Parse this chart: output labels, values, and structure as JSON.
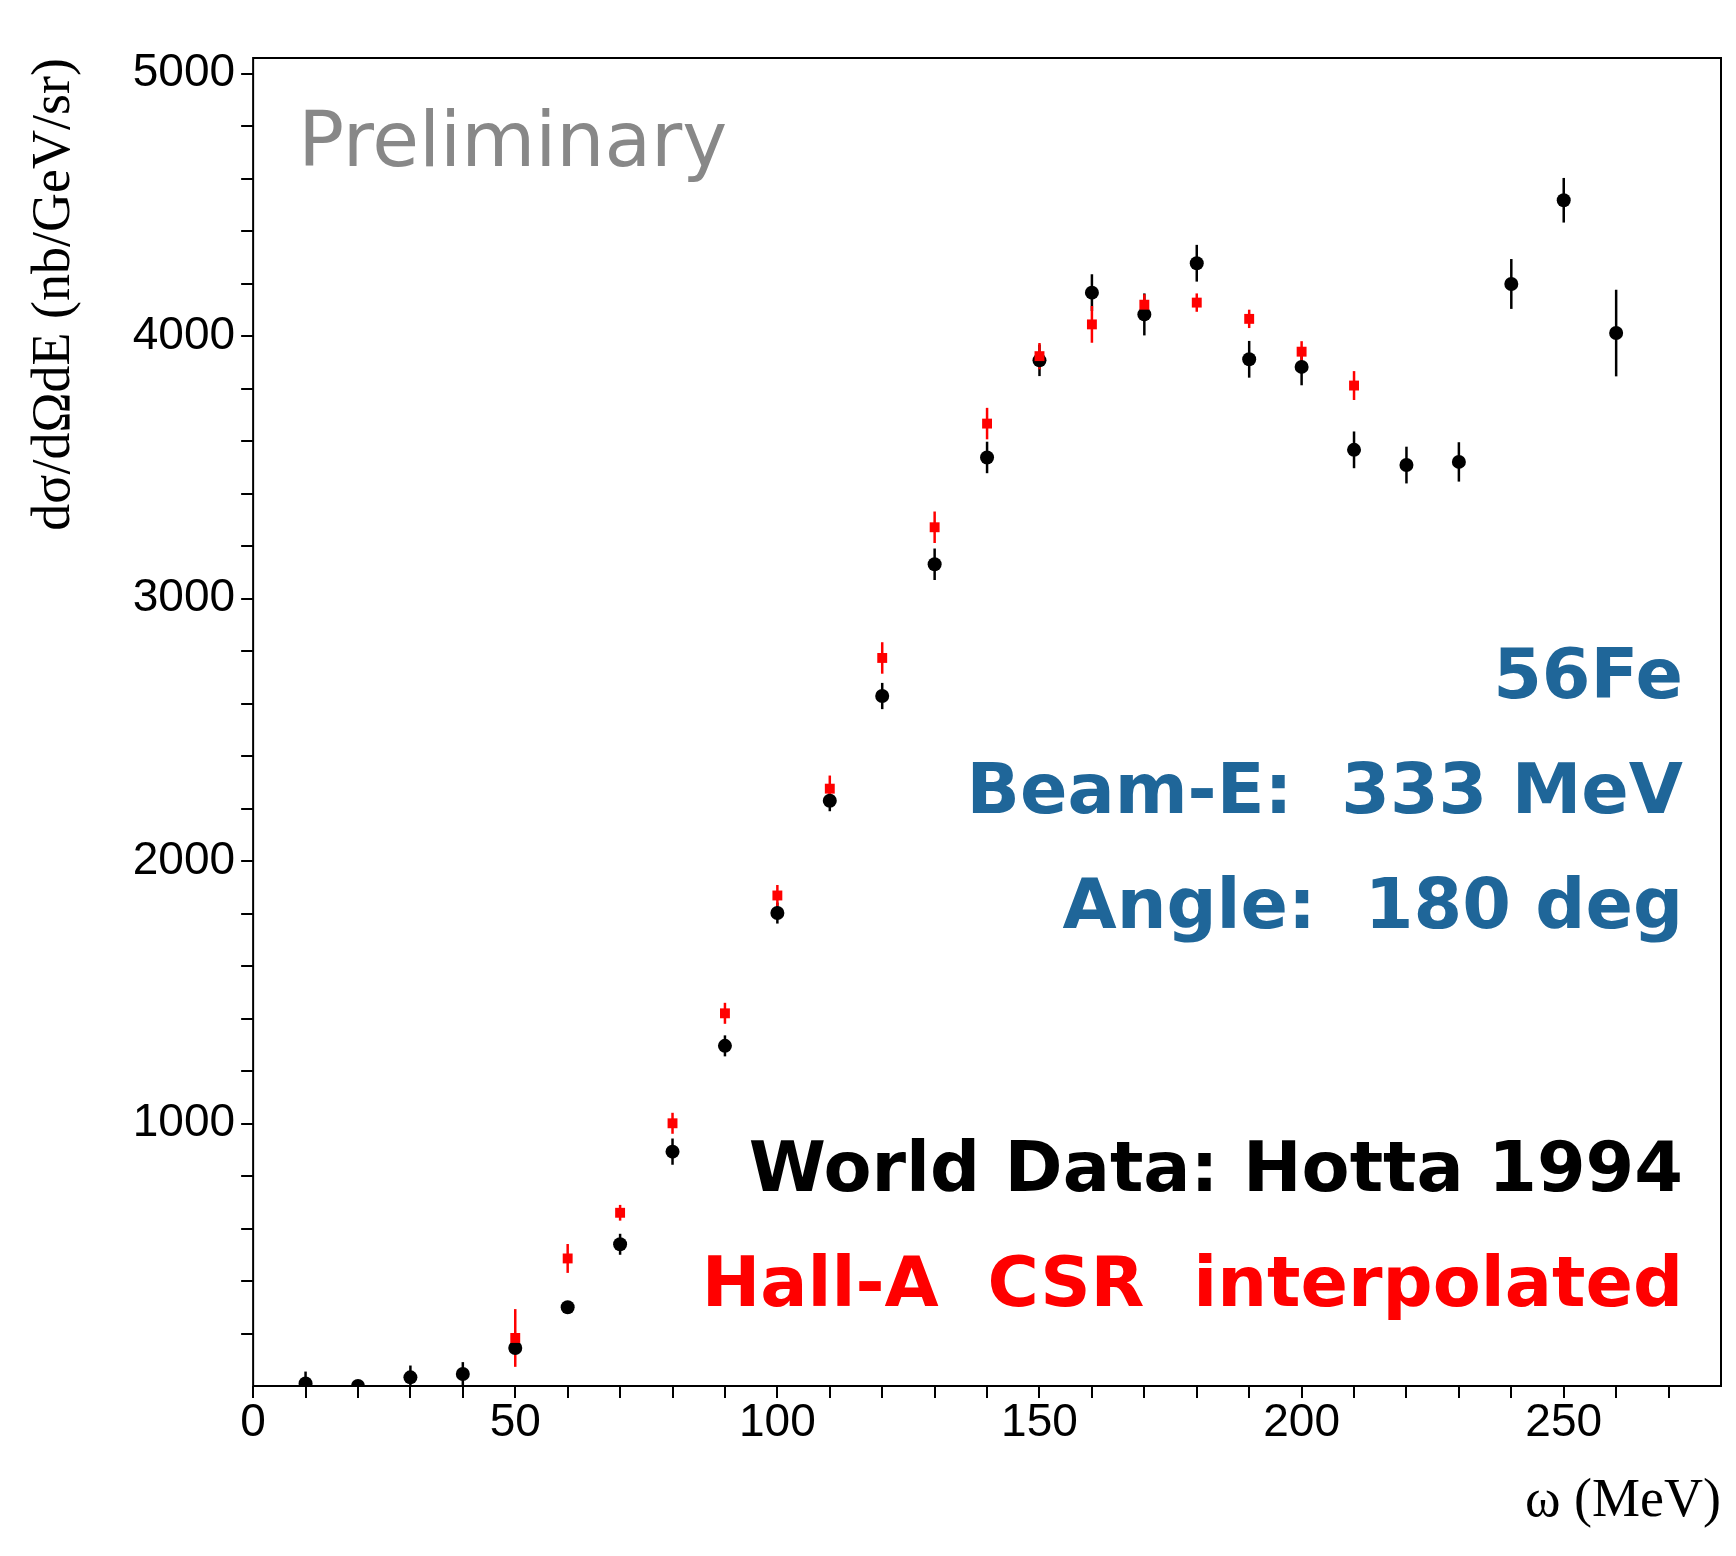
{
  "chart_data": {
    "type": "scatter",
    "xlabel": "ω (MeV)",
    "ylabel": "dσ/dΩdE (nb/GeV/sr)",
    "xlim": [
      0,
      280
    ],
    "ylim": [
      0,
      5060
    ],
    "xticks": [
      0,
      {
        "value": 10,
        "label": null
      },
      {
        "value": 20,
        "label": null
      },
      {
        "value": 30,
        "label": null
      },
      {
        "value": 40,
        "label": null
      },
      50,
      {
        "value": 60,
        "label": null
      },
      {
        "value": 70,
        "label": null
      },
      {
        "value": 80,
        "label": null
      },
      {
        "value": 90,
        "label": null
      },
      100,
      {
        "value": 110,
        "label": null
      },
      {
        "value": 120,
        "label": null
      },
      {
        "value": 130,
        "label": null
      },
      {
        "value": 140,
        "label": null
      },
      150,
      {
        "value": 160,
        "label": null
      },
      {
        "value": 170,
        "label": null
      },
      {
        "value": 180,
        "label": null
      },
      {
        "value": 190,
        "label": null
      },
      200,
      {
        "value": 210,
        "label": null
      },
      {
        "value": 220,
        "label": null
      },
      {
        "value": 230,
        "label": null
      },
      {
        "value": 240,
        "label": null
      },
      250,
      {
        "value": 260,
        "label": null
      },
      {
        "value": 270,
        "label": null
      }
    ],
    "yticks": [
      {
        "value": 200,
        "label": null
      },
      {
        "value": 400,
        "label": null
      },
      {
        "value": 600,
        "label": null
      },
      {
        "value": 800,
        "label": null
      },
      1000,
      {
        "value": 1200,
        "label": null
      },
      {
        "value": 1400,
        "label": null
      },
      {
        "value": 1600,
        "label": null
      },
      {
        "value": 1800,
        "label": null
      },
      2000,
      {
        "value": 2200,
        "label": null
      },
      {
        "value": 2400,
        "label": null
      },
      {
        "value": 2600,
        "label": null
      },
      {
        "value": 2800,
        "label": null
      },
      3000,
      {
        "value": 3200,
        "label": null
      },
      {
        "value": 3400,
        "label": null
      },
      {
        "value": 3600,
        "label": null
      },
      {
        "value": 3800,
        "label": null
      },
      4000,
      {
        "value": 4200,
        "label": null
      },
      {
        "value": 4400,
        "label": null
      },
      {
        "value": 4600,
        "label": null
      },
      {
        "value": 4800,
        "label": null
      },
      5000
    ],
    "grid": false,
    "legend": "bottom right",
    "annotations": [
      "Preliminary",
      "56Fe",
      "Beam-E:  333 MeV",
      "Angle:  180 deg"
    ],
    "series": [
      {
        "name": "World Data: Hotta 1994",
        "color": "#000000",
        "marker": "circle",
        "x": [
          10,
          20,
          30,
          40,
          50,
          60,
          70,
          80,
          90,
          100,
          110,
          120,
          130,
          140,
          150,
          160,
          170,
          180,
          190,
          200,
          210,
          220,
          230,
          240,
          250,
          260
        ],
        "values": [
          10,
          0,
          33,
          46,
          145,
          300,
          540,
          893,
          1296,
          1802,
          2230,
          2629,
          3131,
          3538,
          3908,
          4166,
          4083,
          4278,
          3912,
          3883,
          3567,
          3509,
          3521,
          4199,
          4518,
          4012
        ],
        "errors": [
          [
            0,
            55
          ],
          null,
          [
            0,
            78
          ],
          45,
          null,
          null,
          40,
          50,
          40,
          40,
          40,
          50,
          60,
          60,
          60,
          70,
          80,
          70,
          70,
          70,
          70,
          70,
          75,
          95,
          85,
          165
        ]
      },
      {
        "name": "Hall-A  CSR  interpolated",
        "color": "#ff0000",
        "marker": "square",
        "x": [
          50,
          60,
          70,
          80,
          90,
          100,
          110,
          120,
          130,
          140,
          150,
          160,
          170,
          180,
          190,
          200,
          210
        ],
        "values": [
          183,
          486,
          660,
          1001,
          1420,
          1869,
          2276,
          2774,
          3272,
          3667,
          3924,
          4045,
          4120,
          4128,
          4066,
          3941,
          3812
        ],
        "errors": [
          110,
          55,
          30,
          40,
          40,
          40,
          50,
          60,
          60,
          60,
          50,
          70,
          40,
          35,
          35,
          40,
          55
        ]
      }
    ]
  }
}
